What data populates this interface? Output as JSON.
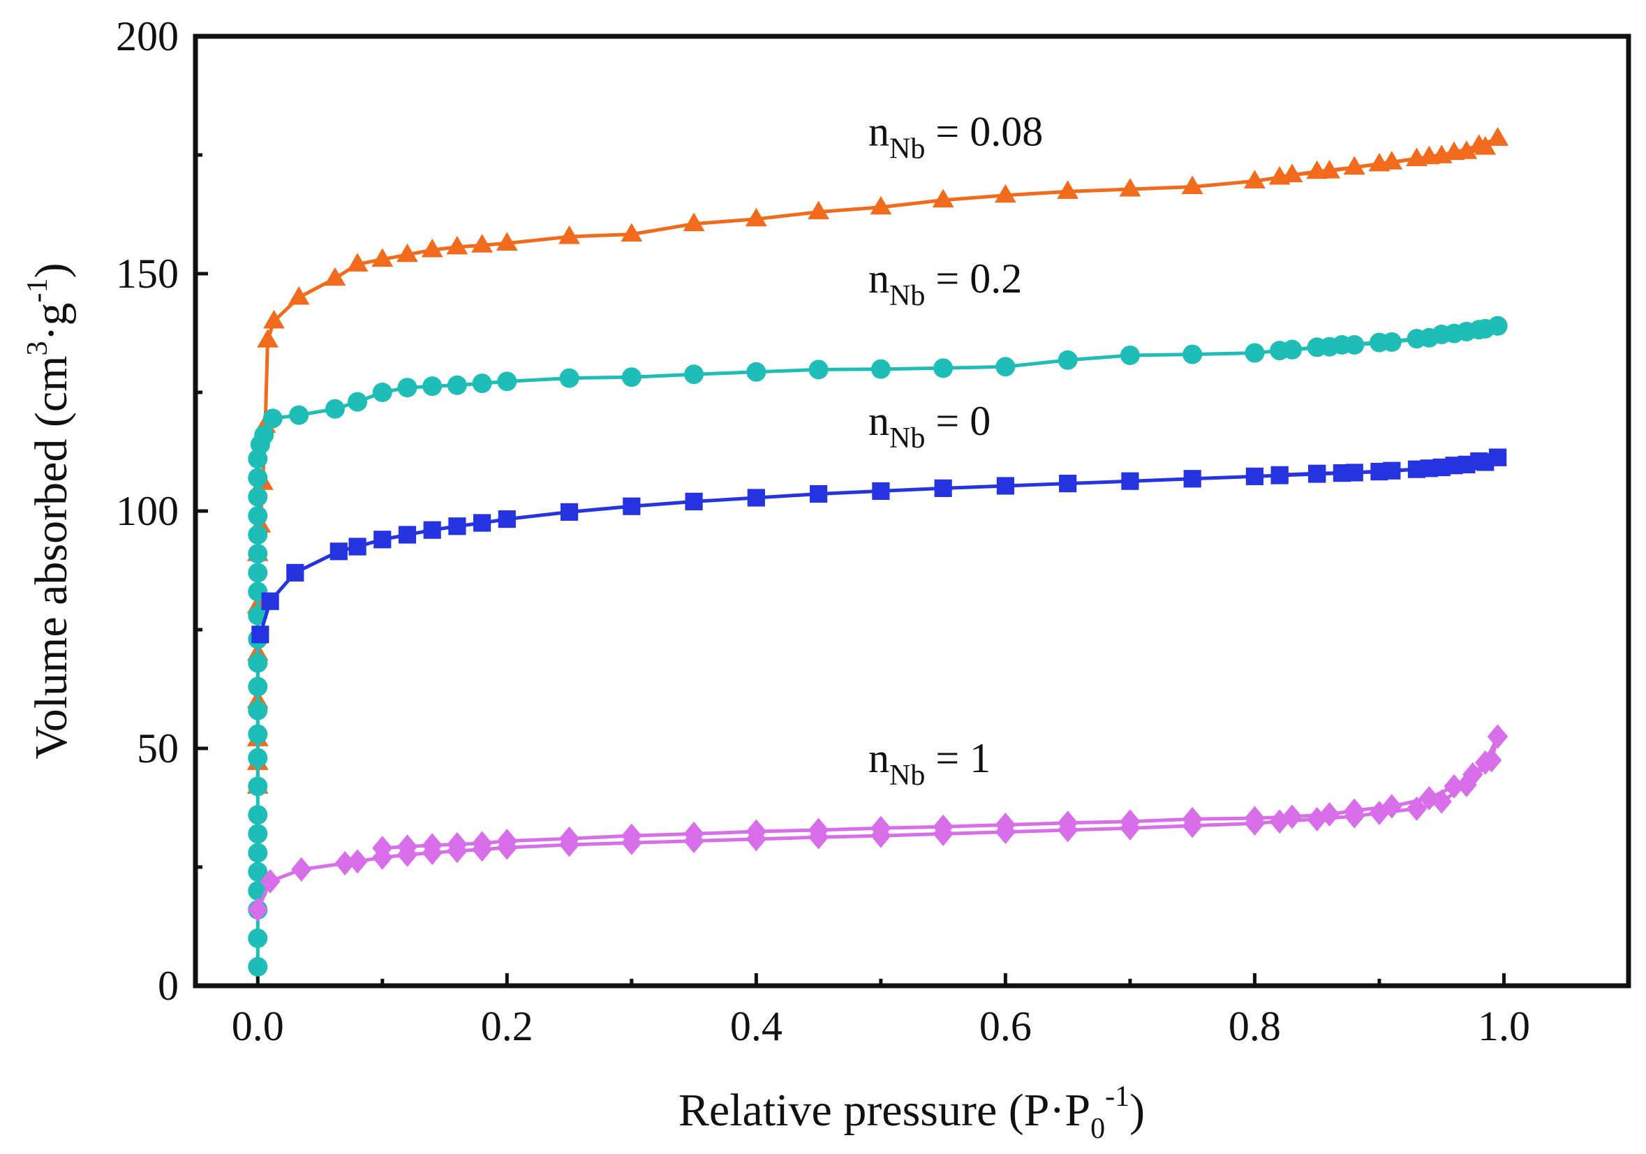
{
  "chart_data": {
    "type": "line",
    "title": "",
    "xlabel": {
      "main": "Relative pressure (P·P",
      "sub": "0",
      "sup": "-1",
      "close": ")"
    },
    "ylabel": {
      "main": "Volume absorbed (cm",
      "sup1": "3",
      "mid": "·g",
      "sup2": "-1",
      "close": ")"
    },
    "xlim": [
      -0.05,
      1.1
    ],
    "ylim": [
      0,
      200
    ],
    "xticks": [
      0.0,
      0.2,
      0.4,
      0.6,
      0.8,
      1.0
    ],
    "xtick_labels": [
      "0.0",
      "0.2",
      "0.4",
      "0.6",
      "0.8",
      "1.0"
    ],
    "yticks": [
      0,
      50,
      100,
      150,
      200
    ],
    "ytick_labels": [
      "0",
      "50",
      "100",
      "150",
      "200"
    ],
    "grid": false,
    "series": [
      {
        "name": "nNb = 0.08",
        "color": "#F26A1B",
        "marker": "triangle",
        "adsorption": [
          [
            0,
            42
          ],
          [
            0,
            47
          ],
          [
            0,
            52
          ],
          [
            0,
            60
          ],
          [
            0,
            70
          ],
          [
            0,
            80
          ],
          [
            0,
            91
          ],
          [
            0.002,
            97
          ],
          [
            0.004,
            106
          ],
          [
            0.006,
            118
          ],
          [
            0.008,
            136
          ],
          [
            0.013,
            140
          ],
          [
            0.033,
            145
          ],
          [
            0.062,
            149
          ],
          [
            0.08,
            152
          ],
          [
            0.1,
            153
          ],
          [
            0.12,
            154
          ],
          [
            0.14,
            155
          ],
          [
            0.16,
            155.6
          ],
          [
            0.18,
            156
          ],
          [
            0.2,
            156.4
          ],
          [
            0.25,
            157.8
          ],
          [
            0.3,
            158.3
          ],
          [
            0.35,
            160.5
          ],
          [
            0.4,
            161.5
          ],
          [
            0.45,
            163
          ],
          [
            0.5,
            164
          ],
          [
            0.55,
            165.5
          ],
          [
            0.6,
            166.5
          ],
          [
            0.65,
            167.3
          ],
          [
            0.7,
            167.8
          ],
          [
            0.75,
            168.3
          ],
          [
            0.8,
            169.5
          ],
          [
            0.82,
            170.3
          ],
          [
            0.83,
            170.8
          ],
          [
            0.86,
            171.6
          ],
          [
            0.88,
            172.4
          ],
          [
            0.9,
            173.1
          ],
          [
            0.93,
            174.2
          ],
          [
            0.95,
            174.8
          ],
          [
            0.97,
            175.7
          ],
          [
            0.985,
            176.6
          ],
          [
            0.995,
            178.5
          ]
        ],
        "desorption": [
          [
            0.995,
            178.5
          ],
          [
            0.98,
            177
          ],
          [
            0.96,
            175.5
          ],
          [
            0.94,
            174.6
          ],
          [
            0.91,
            173.5
          ],
          [
            0.88,
            172.4
          ],
          [
            0.85,
            171.5
          ],
          [
            0.83,
            170.8
          ]
        ]
      },
      {
        "name": "nNb = 0.2",
        "color": "#1EBDB8",
        "marker": "circle",
        "adsorption": [
          [
            0,
            4
          ],
          [
            0,
            10
          ],
          [
            0,
            16
          ],
          [
            0,
            20
          ],
          [
            0,
            24
          ],
          [
            0,
            28
          ],
          [
            0,
            32
          ],
          [
            0,
            36
          ],
          [
            0,
            42
          ],
          [
            0,
            48
          ],
          [
            0,
            53
          ],
          [
            0,
            58
          ],
          [
            0,
            63
          ],
          [
            0,
            68
          ],
          [
            0,
            73
          ],
          [
            0,
            78
          ],
          [
            0,
            83
          ],
          [
            0,
            87
          ],
          [
            0,
            91
          ],
          [
            0,
            95
          ],
          [
            0,
            99
          ],
          [
            0,
            103
          ],
          [
            0,
            107
          ],
          [
            0,
            111
          ],
          [
            0.002,
            114
          ],
          [
            0.005,
            116
          ],
          [
            0.012,
            119.5
          ],
          [
            0.033,
            120.2
          ],
          [
            0.062,
            121.5
          ],
          [
            0.08,
            123
          ],
          [
            0.1,
            125
          ],
          [
            0.12,
            126
          ],
          [
            0.14,
            126.3
          ],
          [
            0.16,
            126.5
          ],
          [
            0.18,
            126.9
          ],
          [
            0.2,
            127.3
          ],
          [
            0.25,
            128
          ],
          [
            0.3,
            128.2
          ],
          [
            0.35,
            128.8
          ],
          [
            0.4,
            129.3
          ],
          [
            0.45,
            129.8
          ],
          [
            0.5,
            129.9
          ],
          [
            0.55,
            130.1
          ],
          [
            0.6,
            130.4
          ],
          [
            0.65,
            131.8
          ],
          [
            0.7,
            132.8
          ],
          [
            0.75,
            133
          ],
          [
            0.8,
            133.3
          ],
          [
            0.82,
            133.8
          ],
          [
            0.83,
            134
          ],
          [
            0.85,
            134.5
          ],
          [
            0.87,
            135
          ],
          [
            0.9,
            135.5
          ],
          [
            0.93,
            136.3
          ],
          [
            0.95,
            137.2
          ],
          [
            0.97,
            137.8
          ],
          [
            0.985,
            138.4
          ],
          [
            0.995,
            139
          ]
        ],
        "desorption": [
          [
            0.995,
            139
          ],
          [
            0.98,
            138.2
          ],
          [
            0.96,
            137.4
          ],
          [
            0.94,
            136.5
          ],
          [
            0.91,
            135.6
          ],
          [
            0.88,
            135
          ],
          [
            0.86,
            134.6
          ],
          [
            0.83,
            134
          ]
        ]
      },
      {
        "name": "nNb = 0",
        "color": "#2534E0",
        "marker": "square",
        "adsorption": [
          [
            0.002,
            74
          ],
          [
            0.01,
            81
          ],
          [
            0.03,
            87
          ],
          [
            0.065,
            91.5
          ],
          [
            0.08,
            92.5
          ],
          [
            0.1,
            94
          ],
          [
            0.12,
            95
          ],
          [
            0.14,
            96
          ],
          [
            0.16,
            96.8
          ],
          [
            0.18,
            97.5
          ],
          [
            0.2,
            98.3
          ],
          [
            0.25,
            99.8
          ],
          [
            0.3,
            101
          ],
          [
            0.35,
            102
          ],
          [
            0.4,
            102.8
          ],
          [
            0.45,
            103.6
          ],
          [
            0.5,
            104.2
          ],
          [
            0.55,
            104.8
          ],
          [
            0.6,
            105.3
          ],
          [
            0.65,
            105.8
          ],
          [
            0.7,
            106.3
          ],
          [
            0.75,
            106.8
          ],
          [
            0.8,
            107.3
          ],
          [
            0.82,
            107.5
          ],
          [
            0.85,
            107.8
          ],
          [
            0.87,
            108
          ],
          [
            0.9,
            108.3
          ],
          [
            0.93,
            108.8
          ],
          [
            0.95,
            109.2
          ],
          [
            0.97,
            109.8
          ],
          [
            0.985,
            110.3
          ],
          [
            0.995,
            111.3
          ]
        ],
        "desorption": [
          [
            0.995,
            111.3
          ],
          [
            0.98,
            110.5
          ],
          [
            0.96,
            109.6
          ],
          [
            0.94,
            109
          ],
          [
            0.91,
            108.5
          ],
          [
            0.88,
            108.1
          ],
          [
            0.85,
            107.9
          ],
          [
            0.82,
            107.6
          ]
        ]
      },
      {
        "name": "nNb = 1",
        "color": "#D96EEB",
        "marker": "diamond",
        "adsorption": [
          [
            0,
            16
          ],
          [
            0.01,
            22
          ],
          [
            0.035,
            24.5
          ],
          [
            0.07,
            25.8
          ],
          [
            0.08,
            26.2
          ],
          [
            0.1,
            27
          ],
          [
            0.12,
            27.6
          ],
          [
            0.14,
            28
          ],
          [
            0.16,
            28.4
          ],
          [
            0.18,
            28.7
          ],
          [
            0.2,
            29.1
          ],
          [
            0.25,
            29.7
          ],
          [
            0.3,
            30.1
          ],
          [
            0.35,
            30.5
          ],
          [
            0.4,
            30.9
          ],
          [
            0.45,
            31.3
          ],
          [
            0.5,
            31.6
          ],
          [
            0.55,
            32
          ],
          [
            0.6,
            32.4
          ],
          [
            0.65,
            32.8
          ],
          [
            0.7,
            33.2
          ],
          [
            0.75,
            33.7
          ],
          [
            0.8,
            34.2
          ],
          [
            0.82,
            34.6
          ],
          [
            0.85,
            35.1
          ],
          [
            0.88,
            35.7
          ],
          [
            0.9,
            36.4
          ],
          [
            0.93,
            37.3
          ],
          [
            0.95,
            38.8
          ],
          [
            0.97,
            42.3
          ],
          [
            0.99,
            47.5
          ],
          [
            0.995,
            52.5
          ]
        ],
        "desorption": [
          [
            0.995,
            52.5
          ],
          [
            0.985,
            47
          ],
          [
            0.975,
            44.5
          ],
          [
            0.96,
            42
          ],
          [
            0.94,
            39.5
          ],
          [
            0.91,
            37.8
          ],
          [
            0.88,
            36.9
          ],
          [
            0.86,
            36.1
          ],
          [
            0.83,
            35.6
          ],
          [
            0.8,
            35.3
          ],
          [
            0.75,
            35.1
          ],
          [
            0.7,
            34.6
          ],
          [
            0.65,
            34.3
          ],
          [
            0.6,
            33.9
          ],
          [
            0.55,
            33.5
          ],
          [
            0.5,
            33.2
          ],
          [
            0.45,
            32.8
          ],
          [
            0.4,
            32.5
          ],
          [
            0.35,
            32
          ],
          [
            0.3,
            31.6
          ],
          [
            0.25,
            31
          ],
          [
            0.2,
            30.5
          ],
          [
            0.18,
            30
          ],
          [
            0.16,
            29.8
          ],
          [
            0.14,
            29.6
          ],
          [
            0.12,
            29.3
          ],
          [
            0.1,
            29
          ]
        ]
      }
    ],
    "annotations": [
      {
        "series": 0,
        "base": "n",
        "sub": "Nb",
        "rest": " = 0.08",
        "x": 0.49,
        "y": 177
      },
      {
        "series": 1,
        "base": "n",
        "sub": "Nb",
        "rest": " = 0.2",
        "x": 0.49,
        "y": 146
      },
      {
        "series": 2,
        "base": "n",
        "sub": "Nb",
        "rest": " = 0",
        "x": 0.49,
        "y": 116
      },
      {
        "series": 3,
        "base": "n",
        "sub": "Nb",
        "rest": " = 1",
        "x": 0.49,
        "y": 45
      }
    ]
  }
}
